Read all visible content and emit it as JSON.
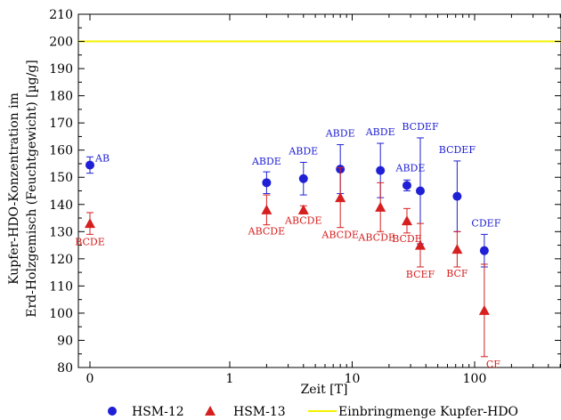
{
  "chart_data": {
    "type": "scatter",
    "xlabel": "Zeit [T]",
    "ylabel_line1": "Kupfer-HDO-Konzentration im",
    "ylabel_line2": "Erd-Holzgemisch (Feuchtgewicht) [µg/g]",
    "x_scale": "log (with 0 shown at left)",
    "x_ticks": [
      "0",
      "1",
      "10",
      "100"
    ],
    "y_ticks": [
      80,
      90,
      100,
      110,
      120,
      130,
      140,
      150,
      160,
      170,
      180,
      190,
      200,
      210
    ],
    "ylim": [
      80,
      210
    ],
    "grid": false,
    "legend_position": "bottom",
    "colors": {
      "blue": "#1f1fd6",
      "red": "#d61f1f",
      "yellow": "#f2f200"
    },
    "series": [
      {
        "name": "HSM-12",
        "marker": "circle",
        "color": "#1f1fd6",
        "points": [
          {
            "x": 0,
            "y": 154.5,
            "err": 3.0,
            "label": "AB"
          },
          {
            "x": 2,
            "y": 148,
            "err": 4.0,
            "label": "ABDE"
          },
          {
            "x": 4,
            "y": 149.5,
            "err": 6.0,
            "label": "ABDE"
          },
          {
            "x": 8,
            "y": 153,
            "err": 9.0,
            "label": "ABDE"
          },
          {
            "x": 17,
            "y": 152.5,
            "err": 10.0,
            "label": "ABDE"
          },
          {
            "x": 28,
            "y": 147,
            "err": 2.0,
            "label": "ABDE"
          },
          {
            "x": 36,
            "y": 145,
            "err": 19.5,
            "label": "BCDEF"
          },
          {
            "x": 72,
            "y": 143,
            "err": 13.0,
            "label": "BCDEF"
          },
          {
            "x": 120,
            "y": 123,
            "err": 6.0,
            "label": "CDEF"
          }
        ]
      },
      {
        "name": "HSM-13",
        "marker": "triangle",
        "color": "#d61f1f",
        "points": [
          {
            "x": 0,
            "y": 133,
            "err": 4.0,
            "label": "BCDE"
          },
          {
            "x": 2,
            "y": 138,
            "err": 5.5,
            "label": "ABCDE"
          },
          {
            "x": 4,
            "y": 138,
            "err": 1.5,
            "label": "ABCDE"
          },
          {
            "x": 8,
            "y": 142.5,
            "err": 11.0,
            "label": "ABCDE"
          },
          {
            "x": 17,
            "y": 139,
            "err": 9.0,
            "label": "ABCDE"
          },
          {
            "x": 28,
            "y": 134,
            "err": 4.5,
            "label": "BCDE"
          },
          {
            "x": 36,
            "y": 125,
            "err": 8.0,
            "label": "BCEF"
          },
          {
            "x": 72,
            "y": 123.5,
            "err": 6.5,
            "label": "BCF"
          },
          {
            "x": 120,
            "y": 101,
            "err": 17.0,
            "label": "CF"
          }
        ]
      },
      {
        "name": "Einbringmenge Kupfer-HDO",
        "type": "hline",
        "color": "#f2f200",
        "y": 200
      }
    ]
  }
}
